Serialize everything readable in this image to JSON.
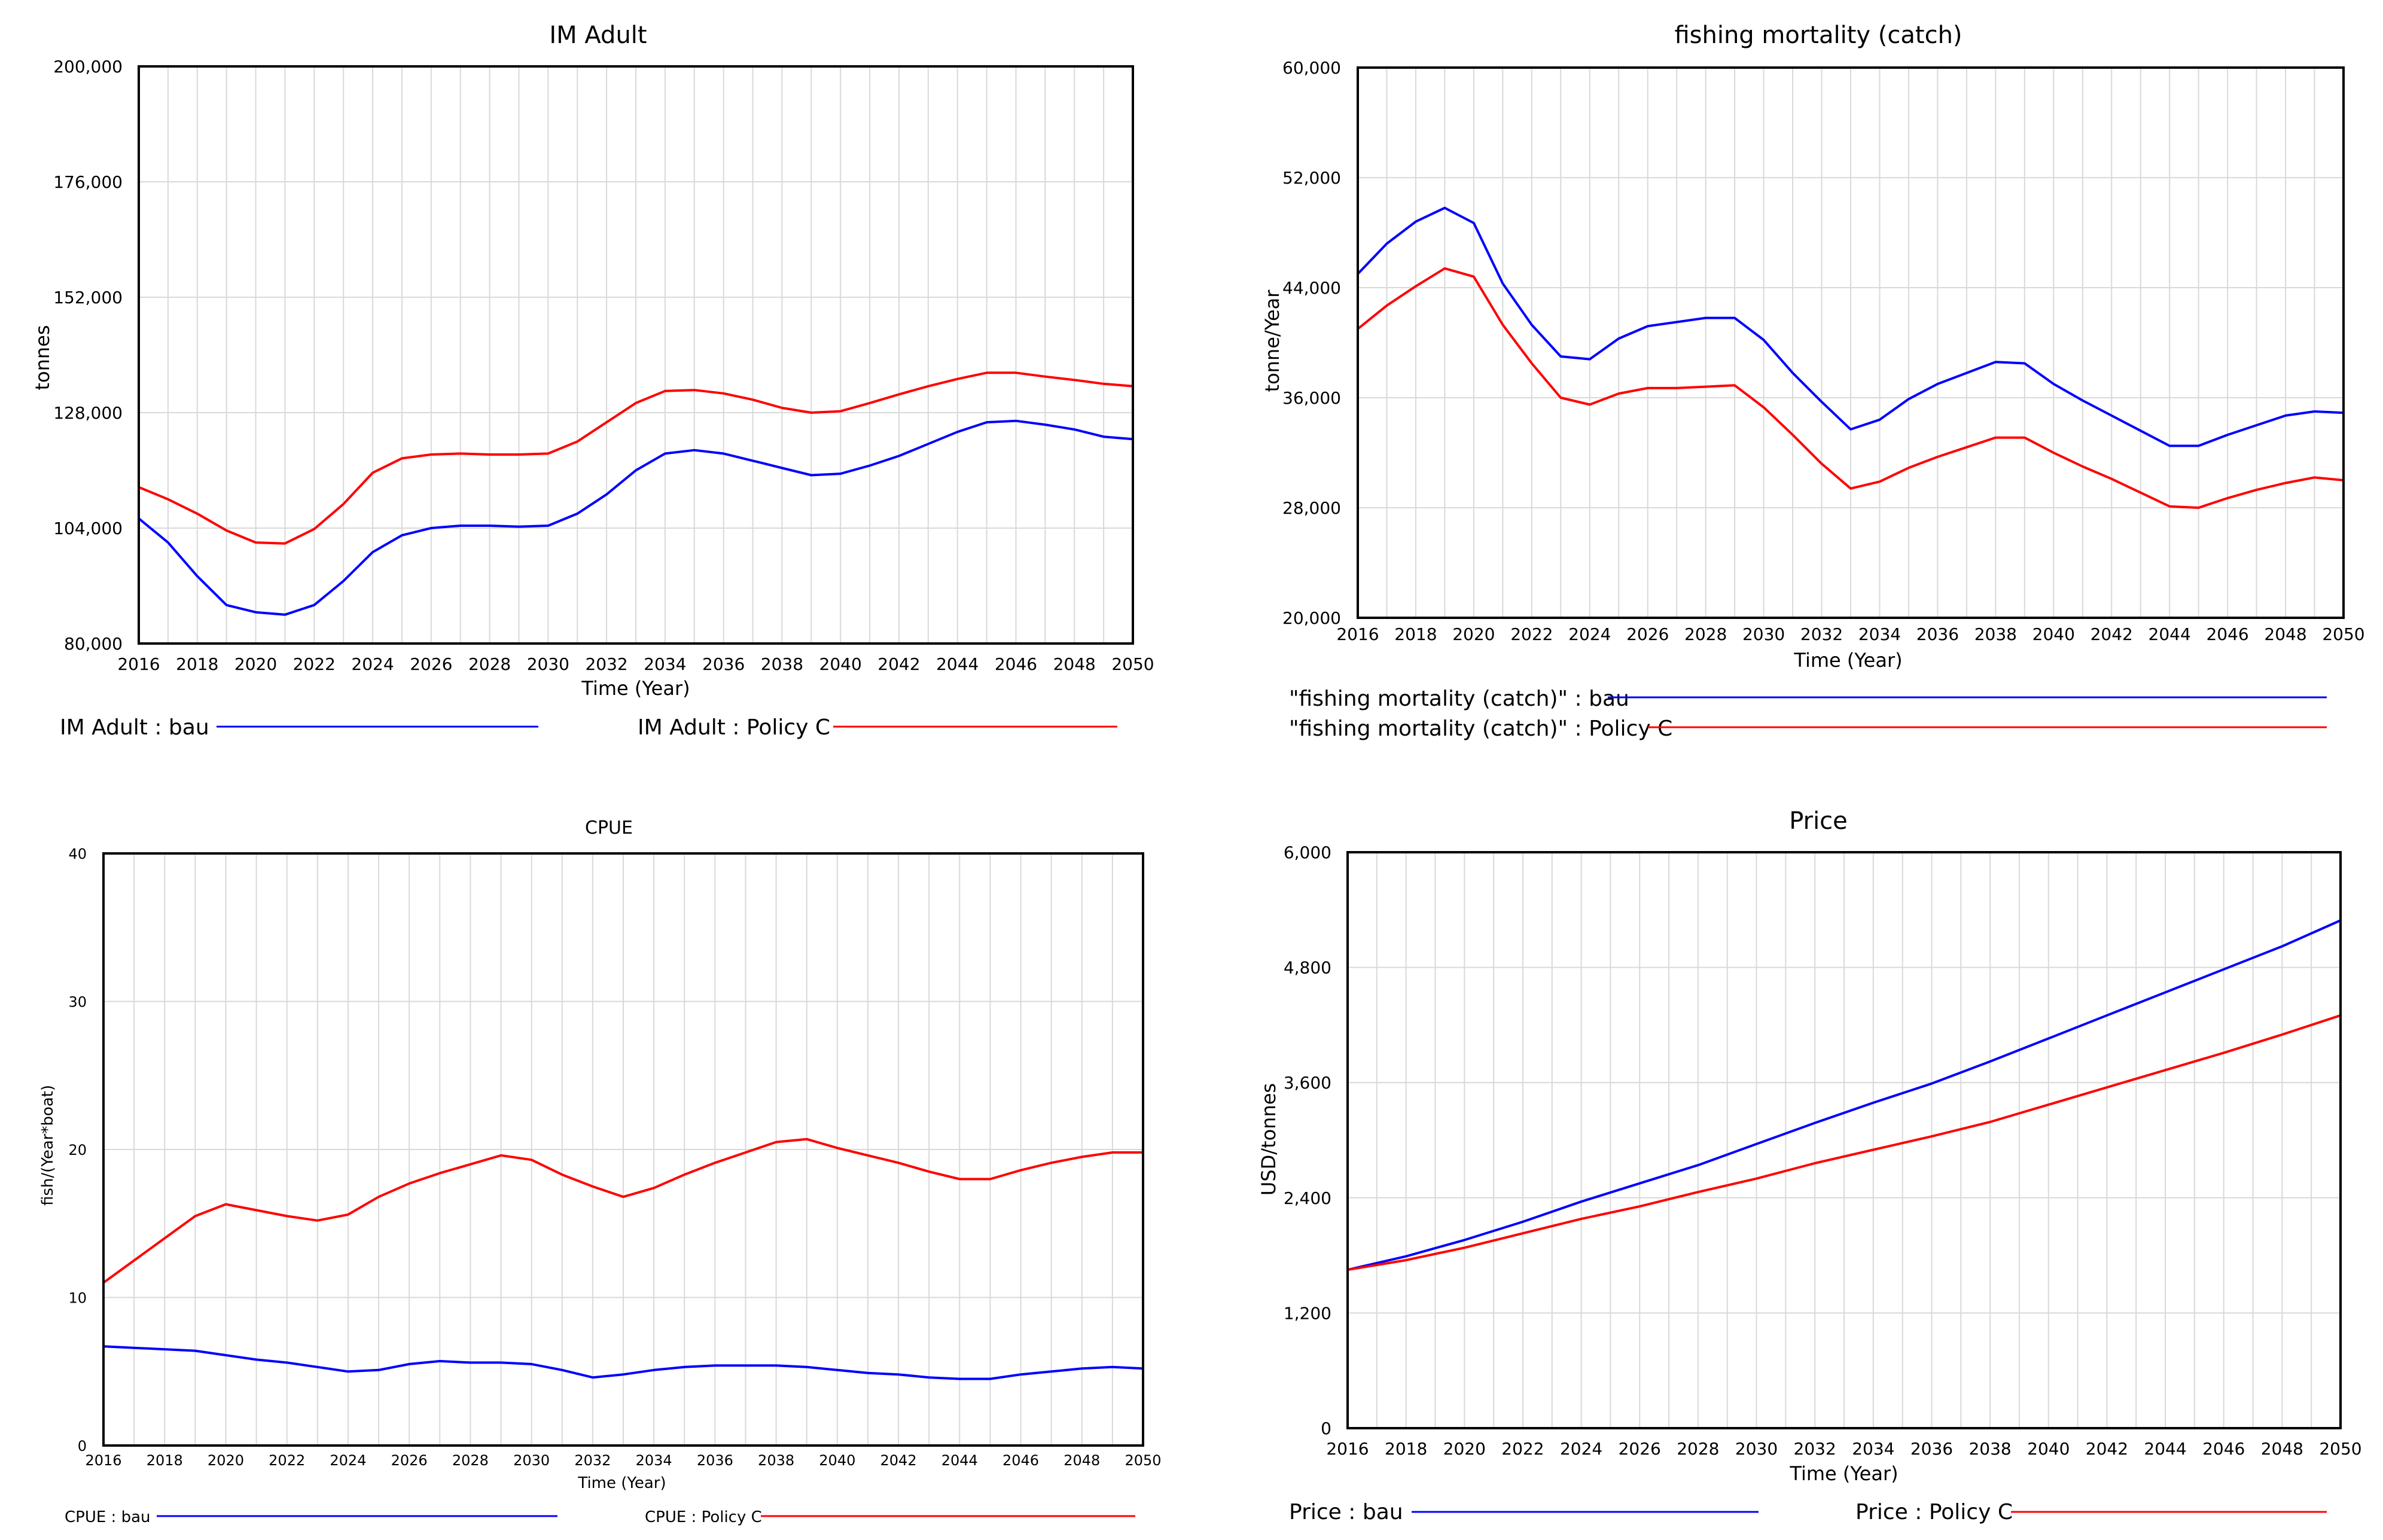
{
  "chart_data": [
    {
      "id": "im-adult",
      "type": "line",
      "title": "IM Adult",
      "xlabel": "Time (Year)",
      "ylabel": "tonnes",
      "ylim": [
        80000,
        200000
      ],
      "yticks": [
        80000,
        104000,
        128000,
        152000,
        176000,
        200000
      ],
      "ytick_labels": [
        "80,000",
        "104,000",
        "128,000",
        "152,000",
        "176,000",
        "200,000"
      ],
      "xlim": [
        2016,
        2050
      ],
      "xtick_labels": [
        "2016",
        "2018",
        "2020",
        "2022",
        "2024",
        "2026",
        "2028",
        "2030",
        "2032",
        "2034",
        "2036",
        "2038",
        "2040",
        "2042",
        "2044",
        "2046",
        "2048",
        "2050"
      ],
      "series": [
        {
          "name": "bau",
          "legend": "IM Adult : bau",
          "color": "#0000ff",
          "x": [
            2016,
            2017,
            2018,
            2019,
            2020,
            2021,
            2022,
            2023,
            2024,
            2025,
            2026,
            2027,
            2028,
            2029,
            2030,
            2031,
            2032,
            2033,
            2034,
            2035,
            2036,
            2037,
            2038,
            2039,
            2040,
            2041,
            2042,
            2043,
            2044,
            2045,
            2046,
            2047,
            2048,
            2049,
            2050
          ],
          "values": [
            106000,
            101000,
            94000,
            88000,
            86500,
            86000,
            88000,
            93000,
            99000,
            102500,
            104000,
            104500,
            104500,
            104300,
            104500,
            107000,
            111000,
            116000,
            119500,
            120200,
            119500,
            118000,
            116500,
            115000,
            115300,
            117000,
            119000,
            121500,
            124000,
            126000,
            126300,
            125500,
            124500,
            123000,
            122500
          ]
        },
        {
          "name": "Policy C",
          "legend": "IM Adult : Policy C",
          "color": "#ff0000",
          "x": [
            2016,
            2017,
            2018,
            2019,
            2020,
            2021,
            2022,
            2023,
            2024,
            2025,
            2026,
            2027,
            2028,
            2029,
            2030,
            2031,
            2032,
            2033,
            2034,
            2035,
            2036,
            2037,
            2038,
            2039,
            2040,
            2041,
            2042,
            2043,
            2044,
            2045,
            2046,
            2047,
            2048,
            2049,
            2050
          ],
          "values": [
            112500,
            110000,
            107000,
            103500,
            101000,
            100800,
            103800,
            109000,
            115500,
            118500,
            119300,
            119500,
            119300,
            119300,
            119500,
            122000,
            126000,
            130000,
            132500,
            132700,
            132000,
            130700,
            129000,
            128000,
            128300,
            130000,
            131800,
            133500,
            135000,
            136300,
            136300,
            135500,
            134800,
            134000,
            133500
          ]
        }
      ]
    },
    {
      "id": "fishing-mortality",
      "type": "line",
      "title": "fishing mortality (catch)",
      "xlabel": "Time (Year)",
      "ylabel": "tonne/Year",
      "ylim": [
        20000,
        60000
      ],
      "yticks": [
        20000,
        28000,
        36000,
        44000,
        52000,
        60000
      ],
      "ytick_labels": [
        "20,000",
        "28,000",
        "36,000",
        "44,000",
        "52,000",
        "60,000"
      ],
      "xlim": [
        2016,
        2050
      ],
      "xtick_labels": [
        "2016",
        "2018",
        "2020",
        "2022",
        "2024",
        "2026",
        "2028",
        "2030",
        "2032",
        "2034",
        "2036",
        "2038",
        "2040",
        "2042",
        "2044",
        "2046",
        "2048",
        "2050"
      ],
      "series": [
        {
          "name": "bau",
          "legend": "\"fishing mortality (catch)\" : bau",
          "color": "#0000ff",
          "x": [
            2016,
            2017,
            2018,
            2019,
            2020,
            2021,
            2022,
            2023,
            2024,
            2025,
            2026,
            2027,
            2028,
            2029,
            2030,
            2031,
            2032,
            2033,
            2034,
            2035,
            2036,
            2037,
            2038,
            2039,
            2040,
            2041,
            2042,
            2043,
            2044,
            2045,
            2046,
            2047,
            2048,
            2049,
            2050
          ],
          "values": [
            45000,
            47200,
            48800,
            49800,
            48700,
            44300,
            41300,
            39000,
            38800,
            40300,
            41200,
            41500,
            41800,
            41800,
            40200,
            37800,
            35700,
            33700,
            34400,
            35900,
            37000,
            37800,
            38600,
            38500,
            37000,
            35800,
            34700,
            33600,
            32500,
            32500,
            33300,
            34000,
            34700,
            35000,
            34900
          ]
        },
        {
          "name": "Policy C",
          "legend": "\"fishing mortality (catch)\" : Policy C",
          "color": "#ff0000",
          "x": [
            2016,
            2017,
            2018,
            2019,
            2020,
            2021,
            2022,
            2023,
            2024,
            2025,
            2026,
            2027,
            2028,
            2029,
            2030,
            2031,
            2032,
            2033,
            2034,
            2035,
            2036,
            2037,
            2038,
            2039,
            2040,
            2041,
            2042,
            2043,
            2044,
            2045,
            2046,
            2047,
            2048,
            2049,
            2050
          ],
          "values": [
            41000,
            42700,
            44100,
            45400,
            44800,
            41300,
            38500,
            36000,
            35500,
            36300,
            36700,
            36700,
            36800,
            36900,
            35300,
            33300,
            31200,
            29400,
            29900,
            30900,
            31700,
            32400,
            33100,
            33100,
            32000,
            31000,
            30100,
            29100,
            28100,
            28000,
            28700,
            29300,
            29800,
            30200,
            30000
          ]
        }
      ]
    },
    {
      "id": "cpue",
      "type": "line",
      "title": "CPUE",
      "xlabel": "Time (Year)",
      "ylabel": "fish/(Year*boat)",
      "ylim": [
        0,
        40
      ],
      "yticks": [
        0,
        10,
        20,
        30,
        40
      ],
      "ytick_labels": [
        "0",
        "10",
        "20",
        "30",
        "40"
      ],
      "xlim": [
        2016,
        2050
      ],
      "xtick_labels": [
        "2016",
        "2018",
        "2020",
        "2022",
        "2024",
        "2026",
        "2028",
        "2030",
        "2032",
        "2034",
        "2036",
        "2038",
        "2040",
        "2042",
        "2044",
        "2046",
        "2048",
        "2050"
      ],
      "series": [
        {
          "name": "bau",
          "legend": "CPUE : bau",
          "color": "#0000ff",
          "x": [
            2016,
            2017,
            2018,
            2019,
            2020,
            2021,
            2022,
            2023,
            2024,
            2025,
            2026,
            2027,
            2028,
            2029,
            2030,
            2031,
            2032,
            2033,
            2034,
            2035,
            2036,
            2037,
            2038,
            2039,
            2040,
            2041,
            2042,
            2043,
            2044,
            2045,
            2046,
            2047,
            2048,
            2049,
            2050
          ],
          "values": [
            6.7,
            6.6,
            6.5,
            6.4,
            6.1,
            5.8,
            5.6,
            5.3,
            5.0,
            5.1,
            5.5,
            5.7,
            5.6,
            5.6,
            5.5,
            5.1,
            4.6,
            4.8,
            5.1,
            5.3,
            5.4,
            5.4,
            5.4,
            5.3,
            5.1,
            4.9,
            4.8,
            4.6,
            4.5,
            4.5,
            4.8,
            5.0,
            5.2,
            5.3,
            5.2
          ]
        },
        {
          "name": "Policy C",
          "legend": "CPUE : Policy C",
          "color": "#ff0000",
          "x": [
            2016,
            2017,
            2018,
            2019,
            2020,
            2021,
            2022,
            2023,
            2024,
            2025,
            2026,
            2027,
            2028,
            2029,
            2030,
            2031,
            2032,
            2033,
            2034,
            2035,
            2036,
            2037,
            2038,
            2039,
            2040,
            2041,
            2042,
            2043,
            2044,
            2045,
            2046,
            2047,
            2048,
            2049,
            2050
          ],
          "values": [
            11,
            12.5,
            14,
            15.5,
            16.3,
            15.9,
            15.5,
            15.2,
            15.6,
            16.8,
            17.7,
            18.4,
            19.0,
            19.6,
            19.3,
            18.3,
            17.5,
            16.8,
            17.4,
            18.3,
            19.1,
            19.8,
            20.5,
            20.7,
            20.1,
            19.6,
            19.1,
            18.5,
            18.0,
            18.0,
            18.6,
            19.1,
            19.5,
            19.8,
            19.8
          ]
        }
      ]
    },
    {
      "id": "price",
      "type": "line",
      "title": "Price",
      "xlabel": "Time (Year)",
      "ylabel": "USD/tonnes",
      "ylim": [
        0,
        6000
      ],
      "yticks": [
        0,
        1200,
        2400,
        3600,
        4800,
        6000
      ],
      "ytick_labels": [
        "0",
        "1,200",
        "2,400",
        "3,600",
        "4,800",
        "6,000"
      ],
      "xlim": [
        2016,
        2050
      ],
      "xtick_labels": [
        "2016",
        "2018",
        "2020",
        "2022",
        "2024",
        "2026",
        "2028",
        "2030",
        "2032",
        "2034",
        "2036",
        "2038",
        "2040",
        "2042",
        "2044",
        "2046",
        "2048",
        "2050"
      ],
      "series": [
        {
          "name": "bau",
          "legend": "Price : bau",
          "color": "#0000ff",
          "x": [
            2016,
            2018,
            2020,
            2022,
            2024,
            2026,
            2028,
            2030,
            2032,
            2034,
            2036,
            2038,
            2040,
            2042,
            2044,
            2046,
            2048,
            2050
          ],
          "values": [
            1650,
            1790,
            1960,
            2150,
            2360,
            2550,
            2740,
            2960,
            3180,
            3390,
            3590,
            3820,
            4060,
            4300,
            4540,
            4780,
            5020,
            5290
          ]
        },
        {
          "name": "Policy C",
          "legend": "Price : Policy C",
          "color": "#ff0000",
          "x": [
            2016,
            2018,
            2020,
            2022,
            2024,
            2026,
            2028,
            2030,
            2032,
            2034,
            2036,
            2038,
            2040,
            2042,
            2044,
            2046,
            2048,
            2050
          ],
          "values": [
            1650,
            1750,
            1880,
            2030,
            2180,
            2310,
            2460,
            2600,
            2760,
            2900,
            3040,
            3190,
            3370,
            3550,
            3730,
            3910,
            4100,
            4300
          ]
        }
      ]
    }
  ]
}
